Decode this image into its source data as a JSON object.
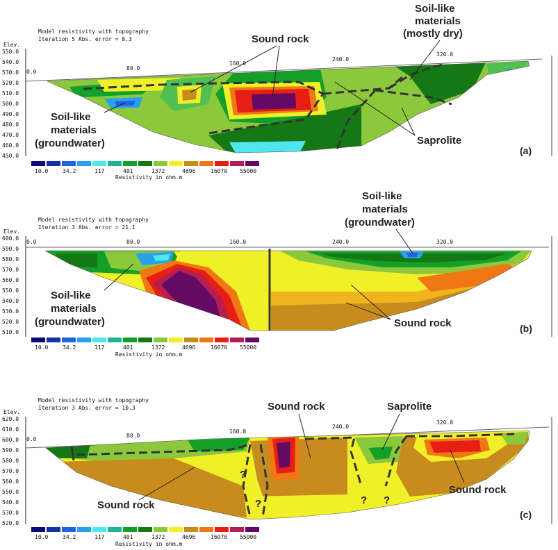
{
  "colors": {
    "palette": [
      "#0a0a78",
      "#1432a0",
      "#1e64dc",
      "#28a0f0",
      "#50e6f0",
      "#1eb496",
      "#14a028",
      "#147814",
      "#8cc83c",
      "#f0f028",
      "#c88c1e",
      "#f07814",
      "#e61e14",
      "#b41e50",
      "#640a64"
    ],
    "boundary": "#333333"
  },
  "legend_labels": [
    "10.0",
    "34.2",
    "117",
    "401",
    "1372",
    "4696",
    "16070",
    "55000"
  ],
  "legend_caption": "Resistivity in ohm.m",
  "elev_label": "Elev.",
  "panels": [
    {
      "id": "a",
      "header_line1": "Model resistivity with topography",
      "header_line2": "Iteration 5 Abs. error = 8.3",
      "tag": "(a)",
      "elev_ticks": [
        "550.0",
        "540.0",
        "530.0",
        "520.0",
        "510.0",
        "500.0",
        "490.0",
        "480.0",
        "470.0",
        "460.0",
        "450.0"
      ],
      "x_ticks": [
        "0.0",
        "80.0",
        "160.0",
        "240.0",
        "320.0"
      ],
      "annotations": {
        "sound_rock": "Sound rock",
        "soil_dry_1": "Soil-like",
        "soil_dry_2": "materials",
        "soil_dry_3": "(mostly dry)",
        "soil_gw_1": "Soil-like",
        "soil_gw_2": "materials",
        "soil_gw_3": "(groundwater)",
        "saprolite": "Saprolite"
      }
    },
    {
      "id": "b",
      "header_line1": "Model resistivity with topography",
      "header_line2": "Iteration 3 Abs. error = 21.1",
      "tag": "(b)",
      "elev_ticks": [
        "600.0",
        "590.0",
        "580.0",
        "570.0",
        "560.0",
        "550.0",
        "540.0",
        "530.0",
        "520.0",
        "510.0"
      ],
      "x_ticks": [
        "0.0",
        "80.0",
        "160.0",
        "240.0",
        "320.0"
      ],
      "annotations": {
        "soil_gw_top_1": "Soil-like",
        "soil_gw_top_2": "materials",
        "soil_gw_top_3": "(groundwater)",
        "soil_gw_1": "Soil-like",
        "soil_gw_2": "materials",
        "soil_gw_3": "(groundwater)",
        "sound_rock": "Sound rock"
      }
    },
    {
      "id": "c",
      "header_line1": "Model resistivity with topography",
      "header_line2": "Iteration 3 Abs. error = 10.3",
      "tag": "(c)",
      "elev_ticks": [
        "620.0",
        "610.0",
        "600.0",
        "590.0",
        "580.0",
        "570.0",
        "560.0",
        "550.0",
        "540.0",
        "530.0",
        "520.0"
      ],
      "x_ticks": [
        "0.0",
        "80.0",
        "160.0",
        "240.0",
        "320.0"
      ],
      "annotations": {
        "sound_rock_mid": "Sound rock",
        "saprolite": "Saprolite",
        "sound_rock_left": "Sound rock",
        "sound_rock_right": "Sound rock",
        "q1": "?",
        "q2": "?",
        "q3": "?",
        "q4": "?"
      }
    }
  ]
}
